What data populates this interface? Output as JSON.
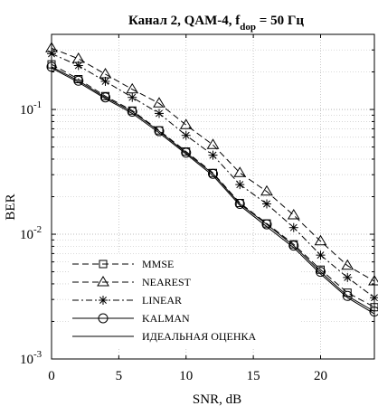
{
  "chart_data": {
    "type": "line",
    "title": {
      "prefix": "Канал 2, QAM-4, f",
      "subscript": "dop",
      "suffix": " = 50 Гц"
    },
    "xlabel": "SNR, dB",
    "ylabel": "BER",
    "xlim": [
      0,
      24
    ],
    "ylim": [
      0.001,
      0.4
    ],
    "yscale": "log",
    "grid": true,
    "legend_position": "bottom-left",
    "x_ticks": [
      {
        "value": 0,
        "label": "0"
      },
      {
        "value": 5,
        "label": "5"
      },
      {
        "value": 10,
        "label": "10"
      },
      {
        "value": 15,
        "label": "15"
      },
      {
        "value": 20,
        "label": "20"
      }
    ],
    "y_ticks": [
      {
        "value": 0.001,
        "base": "10",
        "exp": "-3"
      },
      {
        "value": 0.01,
        "base": "10",
        "exp": "-2"
      },
      {
        "value": 0.1,
        "base": "10",
        "exp": "-1"
      }
    ],
    "x": [
      0,
      2,
      4,
      6,
      8,
      10,
      12,
      14,
      16,
      18,
      20,
      22,
      24
    ],
    "series": [
      {
        "name": "MMSE",
        "marker": "square",
        "dash": "dashed",
        "values": [
          0.23,
          0.175,
          0.128,
          0.098,
          0.068,
          0.046,
          0.031,
          0.0178,
          0.0122,
          0.0083,
          0.0052,
          0.0034,
          0.0026
        ]
      },
      {
        "name": "NEAREST",
        "marker": "triangle",
        "dash": "dashed",
        "values": [
          0.31,
          0.255,
          0.192,
          0.145,
          0.112,
          0.075,
          0.052,
          0.031,
          0.022,
          0.0142,
          0.0088,
          0.0056,
          0.0042
        ]
      },
      {
        "name": "LINEAR",
        "marker": "star",
        "dash": "dashdot",
        "values": [
          0.28,
          0.225,
          0.168,
          0.125,
          0.093,
          0.062,
          0.043,
          0.025,
          0.0175,
          0.0113,
          0.0068,
          0.0045,
          0.0031
        ]
      },
      {
        "name": "KALMAN",
        "marker": "circle",
        "dash": "solid",
        "values": [
          0.22,
          0.17,
          0.125,
          0.096,
          0.067,
          0.045,
          0.0305,
          0.0175,
          0.012,
          0.0081,
          0.005,
          0.0032,
          0.0024
        ]
      },
      {
        "name": "ИДЕАЛЬНАЯ ОЦЕНКА",
        "marker": "none",
        "dash": "solid",
        "values": [
          0.215,
          0.165,
          0.122,
          0.093,
          0.065,
          0.044,
          0.0295,
          0.017,
          0.0115,
          0.0078,
          0.0048,
          0.0031,
          0.0023
        ]
      }
    ]
  }
}
